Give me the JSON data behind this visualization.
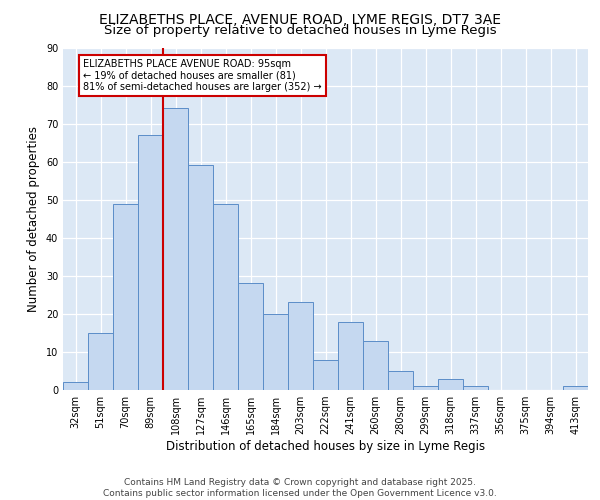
{
  "title_line1": "ELIZABETHS PLACE, AVENUE ROAD, LYME REGIS, DT7 3AE",
  "title_line2": "Size of property relative to detached houses in Lyme Regis",
  "xlabel": "Distribution of detached houses by size in Lyme Regis",
  "ylabel": "Number of detached properties",
  "categories": [
    "32sqm",
    "51sqm",
    "70sqm",
    "89sqm",
    "108sqm",
    "127sqm",
    "146sqm",
    "165sqm",
    "184sqm",
    "203sqm",
    "222sqm",
    "241sqm",
    "260sqm",
    "280sqm",
    "299sqm",
    "318sqm",
    "337sqm",
    "356sqm",
    "375sqm",
    "394sqm",
    "413sqm"
  ],
  "values": [
    2,
    15,
    49,
    67,
    74,
    59,
    49,
    28,
    20,
    23,
    8,
    18,
    13,
    5,
    1,
    3,
    1,
    0,
    0,
    0,
    1
  ],
  "bar_color": "#c5d8f0",
  "bar_edge_color": "#5b8dc8",
  "vline_x_index": 3,
  "vline_color": "#cc0000",
  "annotation_text": "ELIZABETHS PLACE AVENUE ROAD: 95sqm\n← 19% of detached houses are smaller (81)\n81% of semi-detached houses are larger (352) →",
  "annotation_box_color": "#ffffff",
  "annotation_box_edge_color": "#cc0000",
  "ylim": [
    0,
    90
  ],
  "yticks": [
    0,
    10,
    20,
    30,
    40,
    50,
    60,
    70,
    80,
    90
  ],
  "background_color": "#dce8f5",
  "footer_text": "Contains HM Land Registry data © Crown copyright and database right 2025.\nContains public sector information licensed under the Open Government Licence v3.0.",
  "title_fontsize": 10,
  "subtitle_fontsize": 9.5,
  "axis_fontsize": 8.5,
  "tick_fontsize": 7,
  "footer_fontsize": 6.5,
  "annot_fontsize": 7
}
